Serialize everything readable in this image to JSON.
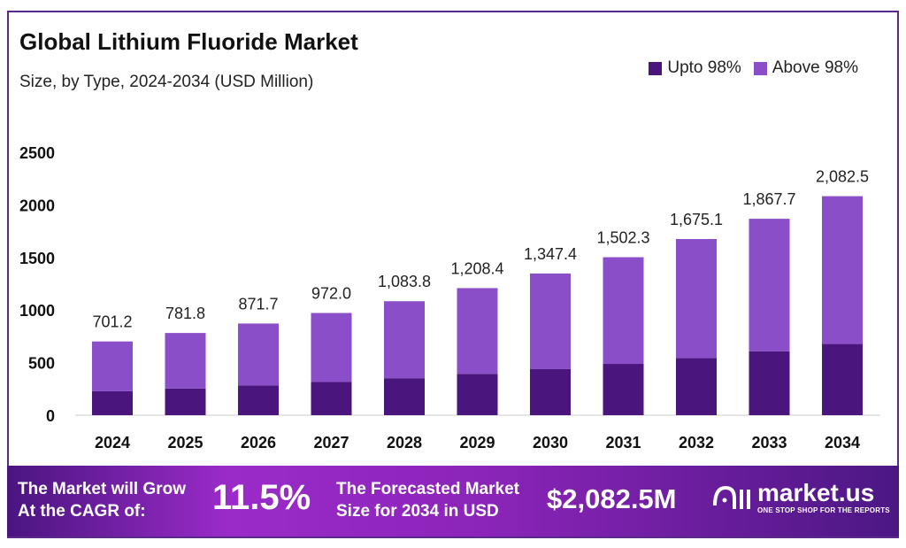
{
  "chart_data": {
    "type": "bar",
    "stacked": true,
    "title": "Global Lithium Fluoride Market",
    "subtitle": "Size, by Type, 2024-2034 (USD Million)",
    "categories": [
      "2024",
      "2025",
      "2026",
      "2027",
      "2028",
      "2029",
      "2030",
      "2031",
      "2032",
      "2033",
      "2034"
    ],
    "series": [
      {
        "name": "Upto 98%",
        "color": "#4a167e",
        "values": [
          228,
          254,
          283,
          316,
          352,
          393,
          438,
          488,
          544,
          607,
          677
        ]
      },
      {
        "name": "Above 98%",
        "color": "#8a4fc8",
        "values": [
          473.2,
          527.8,
          588.7,
          656.0,
          731.8,
          815.4,
          909.4,
          1014.3,
          1131.1,
          1260.7,
          1405.5
        ]
      }
    ],
    "totals_labels": [
      "701.2",
      "781.8",
      "871.7",
      "972.0",
      "1,083.8",
      "1,208.4",
      "1,347.4",
      "1,502.3",
      "1,675.1",
      "1,867.7",
      "2,082.5"
    ],
    "totals": [
      701.2,
      781.8,
      871.7,
      972.0,
      1083.8,
      1208.4,
      1347.4,
      1502.3,
      1675.1,
      1867.7,
      2082.5
    ],
    "yticks": [
      "0",
      "500",
      "1000",
      "1500",
      "2000",
      "2500"
    ],
    "ylim": [
      0,
      2500
    ],
    "xlabel": "",
    "ylabel": "",
    "grid": false,
    "legend_position": "top-right"
  },
  "banner": {
    "cagr_text_1": "The Market will Grow",
    "cagr_text_2": "At the CAGR of:",
    "cagr_value": "11.5%",
    "forecast_text_1": "The Forecasted Market",
    "forecast_text_2": "Size for 2034 in USD",
    "forecast_value": "$2,082.5M",
    "logo_name": "market.us",
    "logo_tagline": "ONE STOP SHOP FOR THE REPORTS"
  }
}
